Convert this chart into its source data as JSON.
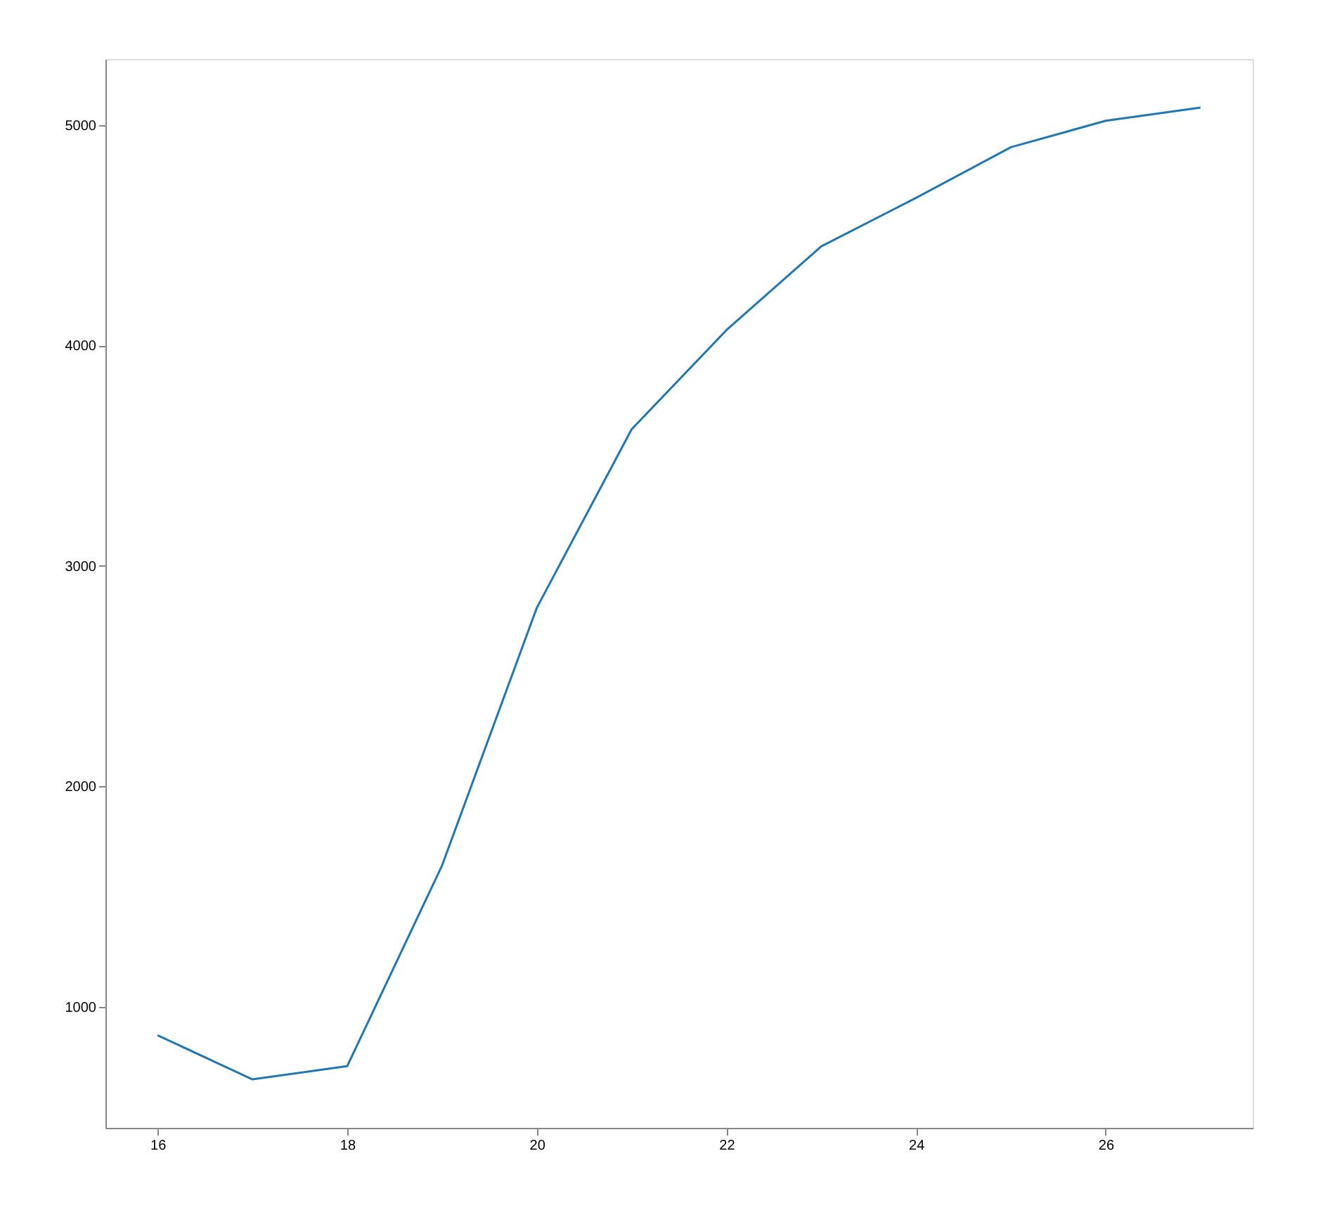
{
  "chart_data": {
    "type": "line",
    "x": [
      16,
      17,
      18,
      19,
      20,
      21,
      22,
      23,
      24,
      25,
      26,
      27
    ],
    "series": [
      {
        "color": "#1f77b4",
        "values": [
          870,
          670,
          730,
          1640,
          2810,
          3620,
          4070,
          4450,
          4670,
          4900,
          5020,
          5080
        ]
      }
    ],
    "xlim": [
      15.45,
      27.55
    ],
    "xticks": [
      16,
      18,
      20,
      22,
      24,
      26
    ],
    "ylim": [
      450,
      5300
    ],
    "yticks": [
      1000,
      2000,
      3000,
      4000,
      5000
    ],
    "grid": false,
    "marker": "none",
    "line_style": "solid"
  }
}
